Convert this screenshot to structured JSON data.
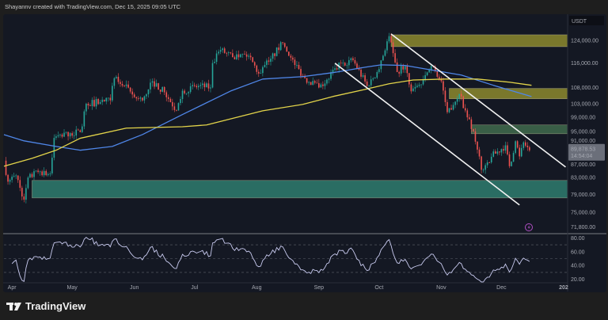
{
  "header": {
    "attribution": "Shayannv created with TradingView.com, Dec 15, 2025 09:05 UTC"
  },
  "footer": {
    "brand": "TradingView",
    "logo_icon": "tradingview-logo-icon"
  },
  "chart_data": {
    "type": "candlestick",
    "title": "",
    "currency_label": "USDT",
    "y_scale": "log",
    "ylim": [
      70600,
      133800
    ],
    "x_range": [
      "2025-03-28",
      "2026-01-03"
    ],
    "grid": false,
    "colors": {
      "up": "#26a69a",
      "down": "#ef5350",
      "ma_blue": "#4f86e8",
      "ma_yellow": "#e3d44a",
      "zone_yellow": "#8c8a2e",
      "zone_green": "#3f6b4c",
      "zone_teal": "#2e7d6f",
      "trendline": "#f2f2f2",
      "rsi": "#c9cbf0",
      "background": "#141823"
    },
    "price_ticks": [
      "124,000.00",
      "116,000.00",
      "108,000.00",
      "103,000.00",
      "99,000.00",
      "95,000.00",
      "91,000.00",
      "87,000.00",
      "83,000.00",
      "79,000.00",
      "75,000.00",
      "71,800.00"
    ],
    "price_tick_values": [
      124000,
      116000,
      108000,
      103000,
      99000,
      95000,
      91000,
      87000,
      83000,
      79000,
      75000,
      71800
    ],
    "time_ticks": [
      {
        "label": "Apr",
        "date": "2025-04-01"
      },
      {
        "label": "May",
        "date": "2025-05-01"
      },
      {
        "label": "Jun",
        "date": "2025-06-01"
      },
      {
        "label": "Jul",
        "date": "2025-07-01"
      },
      {
        "label": "Aug",
        "date": "2025-08-01"
      },
      {
        "label": "Sep",
        "date": "2025-09-01"
      },
      {
        "label": "Oct",
        "date": "2025-10-01"
      },
      {
        "label": "Nov",
        "date": "2025-11-01"
      },
      {
        "label": "Dec",
        "date": "2025-12-01"
      },
      {
        "label": "202",
        "date": "2026-01-01"
      }
    ],
    "last_price": "89,878.53",
    "countdown": "14:54:04",
    "closes": [
      [
        "2025-03-28",
        87200
      ],
      [
        "2025-03-30",
        82000
      ],
      [
        "2025-04-03",
        83500
      ],
      [
        "2025-04-07",
        77800
      ],
      [
        "2025-04-09",
        83000
      ],
      [
        "2025-04-15",
        84500
      ],
      [
        "2025-04-20",
        84000
      ],
      [
        "2025-04-22",
        93200
      ],
      [
        "2025-04-30",
        94500
      ],
      [
        "2025-05-05",
        94800
      ],
      [
        "2025-05-08",
        103000
      ],
      [
        "2025-05-15",
        103500
      ],
      [
        "2025-05-20",
        104000
      ],
      [
        "2025-05-22",
        111000
      ],
      [
        "2025-05-27",
        108500
      ],
      [
        "2025-06-01",
        105000
      ],
      [
        "2025-06-05",
        104000
      ],
      [
        "2025-06-10",
        110000
      ],
      [
        "2025-06-16",
        106500
      ],
      [
        "2025-06-22",
        101000
      ],
      [
        "2025-06-25",
        107000
      ],
      [
        "2025-07-03",
        108500
      ],
      [
        "2025-07-09",
        108000
      ],
      [
        "2025-07-10",
        116000
      ],
      [
        "2025-07-14",
        120500
      ],
      [
        "2025-07-20",
        118000
      ],
      [
        "2025-07-24",
        119000
      ],
      [
        "2025-07-28",
        118500
      ],
      [
        "2025-08-02",
        112500
      ],
      [
        "2025-08-08",
        117500
      ],
      [
        "2025-08-14",
        123000
      ],
      [
        "2025-08-17",
        118500
      ],
      [
        "2025-08-25",
        111000
      ],
      [
        "2025-09-01",
        108000
      ],
      [
        "2025-09-05",
        110500
      ],
      [
        "2025-09-12",
        116000
      ],
      [
        "2025-09-18",
        117000
      ],
      [
        "2025-09-25",
        108500
      ],
      [
        "2025-09-30",
        113000
      ],
      [
        "2025-10-06",
        125500
      ],
      [
        "2025-10-10",
        113000
      ],
      [
        "2025-10-14",
        115000
      ],
      [
        "2025-10-17",
        106800
      ],
      [
        "2025-10-22",
        109000
      ],
      [
        "2025-10-27",
        115000
      ],
      [
        "2025-11-01",
        110000
      ],
      [
        "2025-11-04",
        100500
      ],
      [
        "2025-11-10",
        106000
      ],
      [
        "2025-11-13",
        101000
      ],
      [
        "2025-11-17",
        95000
      ],
      [
        "2025-11-21",
        84900
      ],
      [
        "2025-11-26",
        88200
      ],
      [
        "2025-12-03",
        91200
      ],
      [
        "2025-12-05",
        85800
      ],
      [
        "2025-12-08",
        92300
      ],
      [
        "2025-12-10",
        88300
      ],
      [
        "2025-12-12",
        92000
      ],
      [
        "2025-12-15",
        89878.53
      ]
    ],
    "moving_averages": [
      {
        "color": "#4f86e8",
        "points": [
          [
            "2025-03-28",
            94100
          ],
          [
            "2025-04-07",
            92400
          ],
          [
            "2025-04-23",
            90900
          ],
          [
            "2025-05-05",
            89900
          ],
          [
            "2025-05-21",
            90900
          ],
          [
            "2025-06-05",
            94100
          ],
          [
            "2025-06-25",
            99800
          ],
          [
            "2025-07-19",
            106900
          ],
          [
            "2025-08-04",
            110700
          ],
          [
            "2025-08-24",
            111500
          ],
          [
            "2025-09-08",
            112800
          ],
          [
            "2025-09-24",
            114600
          ],
          [
            "2025-10-02",
            115400
          ],
          [
            "2025-10-14",
            115200
          ],
          [
            "2025-10-26",
            113800
          ],
          [
            "2025-11-11",
            112000
          ],
          [
            "2025-11-27",
            108700
          ],
          [
            "2025-12-16",
            105200
          ]
        ]
      },
      {
        "color": "#e3d44a",
        "points": [
          [
            "2025-03-28",
            85800
          ],
          [
            "2025-04-11",
            87800
          ],
          [
            "2025-04-23",
            89900
          ],
          [
            "2025-05-05",
            93100
          ],
          [
            "2025-05-28",
            95900
          ],
          [
            "2025-06-25",
            96300
          ],
          [
            "2025-07-07",
            96800
          ],
          [
            "2025-08-04",
            100900
          ],
          [
            "2025-08-24",
            102800
          ],
          [
            "2025-09-08",
            105200
          ],
          [
            "2025-09-24",
            107400
          ],
          [
            "2025-10-06",
            109200
          ],
          [
            "2025-10-18",
            110400
          ],
          [
            "2025-11-03",
            110700
          ],
          [
            "2025-11-19",
            110700
          ],
          [
            "2025-12-05",
            109700
          ],
          [
            "2025-12-16",
            108700
          ]
        ]
      }
    ],
    "zones": [
      {
        "from": "2025-10-07",
        "low": 121700,
        "high": 126000,
        "color": "#8c8a2e"
      },
      {
        "from": "2025-11-05",
        "low": 104500,
        "high": 107700,
        "color": "#8c8a2e"
      },
      {
        "from": "2025-11-16",
        "low": 94350,
        "high": 96800,
        "color": "#3f6b4c"
      },
      {
        "from": "2025-04-11",
        "low": 78200,
        "high": 82300,
        "color": "#2e7d6f"
      }
    ],
    "trendlines": [
      {
        "start": [
          "2025-10-07",
          126300
        ],
        "end": [
          "2026-01-02",
          85600
        ]
      },
      {
        "start": [
          "2025-09-09",
          115950
        ],
        "end": [
          "2025-12-10",
          76600
        ]
      }
    ],
    "rsi": {
      "ticks": [
        "80.00",
        "60.00",
        "40.00",
        "20.00"
      ],
      "tick_values": [
        80,
        60,
        40,
        20
      ],
      "guides": [
        70,
        50,
        30
      ],
      "ylim": [
        15,
        85
      ]
    },
    "alert_icon": "lightning-icon"
  }
}
